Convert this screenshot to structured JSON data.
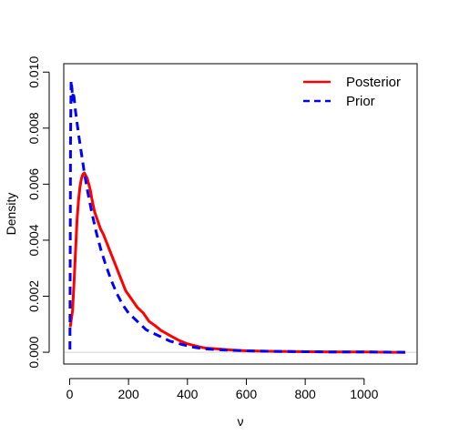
{
  "chart_data": {
    "type": "line",
    "xlabel": "ν",
    "ylabel": "Density",
    "xlim": [
      -20,
      1180
    ],
    "ylim": [
      -0.00042,
      0.0103
    ],
    "x_ticks": [
      0,
      200,
      400,
      600,
      800,
      1000
    ],
    "x_tick_labels": [
      "0",
      "200",
      "400",
      "600",
      "800",
      "1000"
    ],
    "y_ticks": [
      0.0,
      0.002,
      0.004,
      0.006,
      0.008,
      0.01
    ],
    "y_tick_labels": [
      "0.000",
      "0.002",
      "0.004",
      "0.006",
      "0.008",
      "0.010"
    ],
    "baseline": 0,
    "legend_position": "top-right",
    "series": [
      {
        "name": "Posterior",
        "color": "#ff0000",
        "dash": "solid",
        "points": [
          [
            2,
            0.0009
          ],
          [
            10,
            0.0015
          ],
          [
            15,
            0.0025
          ],
          [
            20,
            0.0036
          ],
          [
            25,
            0.0047
          ],
          [
            30,
            0.0054
          ],
          [
            35,
            0.0059
          ],
          [
            40,
            0.0062
          ],
          [
            45,
            0.00635
          ],
          [
            50,
            0.0064
          ],
          [
            55,
            0.0063
          ],
          [
            60,
            0.0062
          ],
          [
            65,
            0.006
          ],
          [
            70,
            0.0058
          ],
          [
            75,
            0.0055
          ],
          [
            85,
            0.005
          ],
          [
            95,
            0.0047
          ],
          [
            105,
            0.0044
          ],
          [
            115,
            0.0042
          ],
          [
            130,
            0.0038
          ],
          [
            145,
            0.0034
          ],
          [
            160,
            0.003
          ],
          [
            175,
            0.0026
          ],
          [
            190,
            0.0022
          ],
          [
            210,
            0.0019
          ],
          [
            230,
            0.0016
          ],
          [
            250,
            0.0014
          ],
          [
            270,
            0.0011
          ],
          [
            290,
            0.00095
          ],
          [
            310,
            0.00078
          ],
          [
            340,
            0.0006
          ],
          [
            370,
            0.00043
          ],
          [
            400,
            0.0003
          ],
          [
            430,
            0.00022
          ],
          [
            460,
            0.00015
          ],
          [
            500,
            0.00012
          ],
          [
            550,
            8e-05
          ],
          [
            600,
            5e-05
          ],
          [
            700,
            3e-05
          ],
          [
            800,
            2e-05
          ],
          [
            900,
            1e-05
          ],
          [
            1000,
            1e-05
          ],
          [
            1100,
            0.0
          ],
          [
            1140,
            0.0
          ]
        ]
      },
      {
        "name": "Prior",
        "color": "#0000ff",
        "dash": "dashed",
        "points": [
          [
            1,
            0.0001
          ],
          [
            3,
            0.0075
          ],
          [
            5,
            0.0097
          ],
          [
            8,
            0.0094
          ],
          [
            10,
            0.009
          ],
          [
            12,
            0.0093
          ],
          [
            15,
            0.0091
          ],
          [
            20,
            0.0086
          ],
          [
            30,
            0.0078
          ],
          [
            40,
            0.0071
          ],
          [
            50,
            0.0064
          ],
          [
            60,
            0.0058
          ],
          [
            75,
            0.005
          ],
          [
            90,
            0.0043
          ],
          [
            105,
            0.0037
          ],
          [
            120,
            0.0032
          ],
          [
            140,
            0.0026
          ],
          [
            160,
            0.0021
          ],
          [
            180,
            0.0017
          ],
          [
            200,
            0.0014
          ],
          [
            230,
            0.0011
          ],
          [
            260,
            0.0008
          ],
          [
            300,
            0.0006
          ],
          [
            340,
            0.0004
          ],
          [
            380,
            0.00028
          ],
          [
            420,
            0.00018
          ],
          [
            460,
            0.00012
          ],
          [
            500,
            9e-05
          ],
          [
            600,
            5e-05
          ],
          [
            700,
            3e-05
          ],
          [
            800,
            2e-05
          ],
          [
            900,
            1e-05
          ],
          [
            1000,
            1e-05
          ],
          [
            1140,
            0.0
          ]
        ]
      }
    ]
  }
}
